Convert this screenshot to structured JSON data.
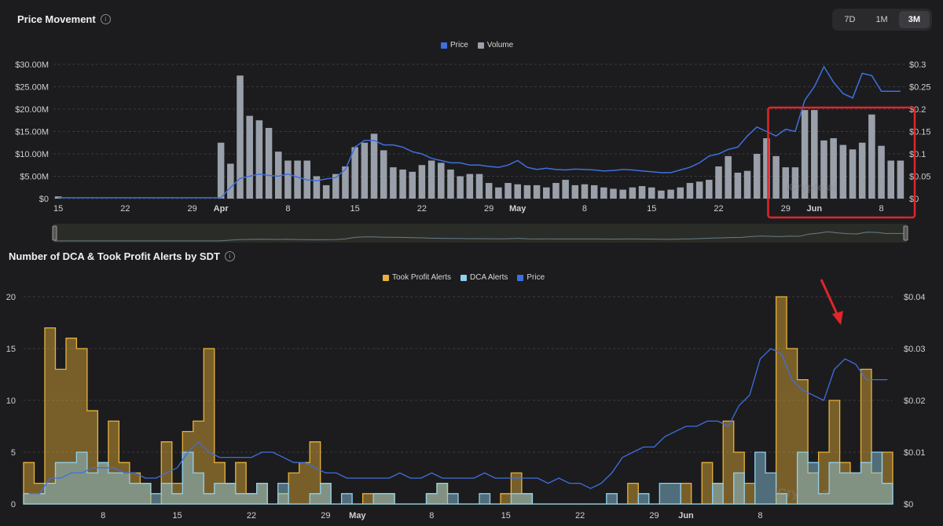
{
  "panel1": {
    "title": "Price Movement",
    "range_buttons": [
      "7D",
      "1M",
      "3M"
    ],
    "active_range": "3M",
    "legend": [
      "Price",
      "Volume"
    ]
  },
  "panel2": {
    "title": "Number of DCA & Took Profit Alerts by SDT",
    "legend": [
      "Took Profit Alerts",
      "DCA Alerts"
    ],
    "legend_price": "Price"
  },
  "colors": {
    "price": "#3e6fe0",
    "volume": "#9aa0aa",
    "took_profit": "#e8b23a",
    "dca": "#8fd0ee",
    "highlight": "#e0262b",
    "arrow": "#e0262b"
  },
  "watermark": "iCrypto.ai",
  "chart_data": [
    {
      "type": "bar",
      "title": "Price Movement",
      "x_tick_labels": [
        "15",
        "22",
        "29",
        "Apr",
        "8",
        "15",
        "22",
        "29",
        "May",
        "8",
        "15",
        "22",
        "29",
        "Jun",
        "8"
      ],
      "x_tick_index": [
        0,
        7,
        14,
        17,
        24,
        31,
        38,
        45,
        48,
        55,
        62,
        69,
        76,
        79,
        86
      ],
      "y_left_ticks": [
        "$0",
        "$5.00M",
        "$10.00M",
        "$15.00M",
        "$20.00M",
        "$25.00M",
        "$30.00M"
      ],
      "y_right_ticks": [
        "$0",
        "$0.05",
        "$0.1",
        "$0.15",
        "$0.2",
        "$0.25",
        "$0.3"
      ],
      "ylim_left": [
        0,
        30
      ],
      "ylim_right": [
        0,
        0.3
      ],
      "series": [
        {
          "name": "Volume",
          "unit": "$M",
          "values": [
            0.5,
            0,
            0,
            0,
            0,
            0,
            0,
            0,
            0,
            0,
            0,
            0,
            0,
            0,
            0,
            0,
            0,
            12.5,
            7.8,
            27.5,
            18.5,
            17.5,
            15.8,
            10.5,
            8.5,
            8.5,
            8.5,
            5.0,
            3.0,
            5.5,
            7.2,
            11.5,
            12.5,
            14.5,
            10.8,
            7.0,
            6.5,
            6.0,
            7.5,
            8.5,
            8.0,
            6.5,
            5.0,
            5.5,
            5.5,
            3.5,
            2.5,
            3.5,
            3.2,
            3.0,
            3.0,
            2.5,
            3.5,
            4.2,
            3.0,
            3.2,
            3.0,
            2.5,
            2.2,
            2.0,
            2.5,
            2.8,
            2.5,
            1.8,
            2.0,
            2.5,
            3.5,
            3.8,
            4.2,
            7.2,
            9.5,
            5.8,
            6.2,
            10.0,
            13.5,
            9.5,
            7.0,
            7.0,
            19.8,
            19.8,
            13.0,
            13.5,
            12.0,
            11.0,
            12.5,
            18.8,
            11.8,
            8.5,
            8.5
          ]
        },
        {
          "name": "Price",
          "unit": "$",
          "values": [
            0.002,
            0.002,
            0.002,
            0.002,
            0.002,
            0.002,
            0.002,
            0.002,
            0.002,
            0.002,
            0.002,
            0.002,
            0.002,
            0.002,
            0.002,
            0.002,
            0.002,
            0.002,
            0.025,
            0.045,
            0.05,
            0.055,
            0.052,
            0.05,
            0.055,
            0.048,
            0.042,
            0.04,
            0.044,
            0.047,
            0.065,
            0.115,
            0.13,
            0.13,
            0.12,
            0.12,
            0.115,
            0.105,
            0.1,
            0.09,
            0.085,
            0.08,
            0.08,
            0.075,
            0.075,
            0.072,
            0.07,
            0.075,
            0.085,
            0.07,
            0.065,
            0.068,
            0.065,
            0.064,
            0.066,
            0.065,
            0.064,
            0.062,
            0.063,
            0.065,
            0.064,
            0.062,
            0.06,
            0.058,
            0.058,
            0.064,
            0.07,
            0.08,
            0.095,
            0.1,
            0.11,
            0.115,
            0.14,
            0.16,
            0.15,
            0.14,
            0.155,
            0.15,
            0.22,
            0.25,
            0.295,
            0.26,
            0.235,
            0.225,
            0.28,
            0.275,
            0.24,
            0.24,
            0.24
          ]
        }
      ]
    },
    {
      "type": "bar",
      "title": "Number of DCA & Took Profit Alerts by SDT",
      "x_tick_labels": [
        "8",
        "15",
        "22",
        "29",
        "May",
        "8",
        "15",
        "22",
        "29",
        "Jun",
        "8"
      ],
      "x_tick_index": [
        7,
        14,
        21,
        28,
        31,
        38,
        45,
        52,
        59,
        62,
        69
      ],
      "y_left_ticks": [
        "0",
        "5",
        "10",
        "15",
        "20"
      ],
      "y_right_ticks": [
        "$0",
        "$0.01",
        "$0.02",
        "$0.03",
        "$0.04"
      ],
      "ylim_left": [
        0,
        20
      ],
      "ylim_right": [
        0,
        0.04
      ],
      "series": [
        {
          "name": "Took Profit Alerts",
          "values": [
            4,
            2,
            17,
            13,
            16,
            15,
            9,
            4,
            8,
            4,
            3,
            2,
            0,
            6,
            2,
            7,
            8,
            15,
            4,
            2,
            4,
            1,
            2,
            0,
            1,
            3,
            4,
            6,
            2,
            0,
            0,
            0,
            1,
            1,
            1,
            0,
            0,
            0,
            1,
            2,
            0,
            0,
            0,
            0,
            0,
            1,
            3,
            1,
            0,
            0,
            0,
            0,
            0,
            0,
            0,
            0,
            0,
            2,
            0,
            0,
            0,
            0,
            2,
            0,
            4,
            2,
            8,
            5,
            2,
            0,
            0,
            20,
            15,
            12,
            3,
            5,
            10,
            4,
            3,
            13,
            3,
            5
          ]
        },
        {
          "name": "DCA Alerts",
          "values": [
            1,
            1,
            2,
            4,
            4,
            5,
            3,
            4,
            3,
            3,
            2,
            2,
            1,
            2,
            1,
            5,
            3,
            1,
            2,
            2,
            1,
            1,
            2,
            0,
            2,
            0,
            0,
            1,
            2,
            0,
            1,
            0,
            0,
            1,
            1,
            0,
            0,
            0,
            1,
            2,
            1,
            0,
            0,
            1,
            0,
            0,
            1,
            1,
            0,
            0,
            0,
            0,
            0,
            0,
            0,
            1,
            0,
            0,
            1,
            0,
            2,
            2,
            0,
            0,
            0,
            2,
            0,
            3,
            0,
            5,
            3,
            1,
            0,
            5,
            4,
            1,
            4,
            3,
            3,
            4,
            5,
            2
          ]
        },
        {
          "name": "Price",
          "unit": "$",
          "values": [
            0.002,
            0.002,
            0.005,
            0.005,
            0.006,
            0.006,
            0.007,
            0.007,
            0.007,
            0.006,
            0.006,
            0.005,
            0.005,
            0.006,
            0.007,
            0.01,
            0.012,
            0.01,
            0.009,
            0.009,
            0.009,
            0.009,
            0.01,
            0.01,
            0.009,
            0.008,
            0.008,
            0.007,
            0.006,
            0.006,
            0.005,
            0.005,
            0.005,
            0.005,
            0.005,
            0.006,
            0.005,
            0.005,
            0.006,
            0.005,
            0.005,
            0.005,
            0.005,
            0.006,
            0.005,
            0.005,
            0.005,
            0.005,
            0.005,
            0.004,
            0.005,
            0.004,
            0.004,
            0.003,
            0.004,
            0.006,
            0.009,
            0.01,
            0.011,
            0.011,
            0.013,
            0.014,
            0.015,
            0.015,
            0.016,
            0.016,
            0.015,
            0.019,
            0.021,
            0.028,
            0.03,
            0.029,
            0.024,
            0.022,
            0.021,
            0.02,
            0.026,
            0.028,
            0.027,
            0.024,
            0.024,
            0.024
          ]
        }
      ]
    }
  ]
}
